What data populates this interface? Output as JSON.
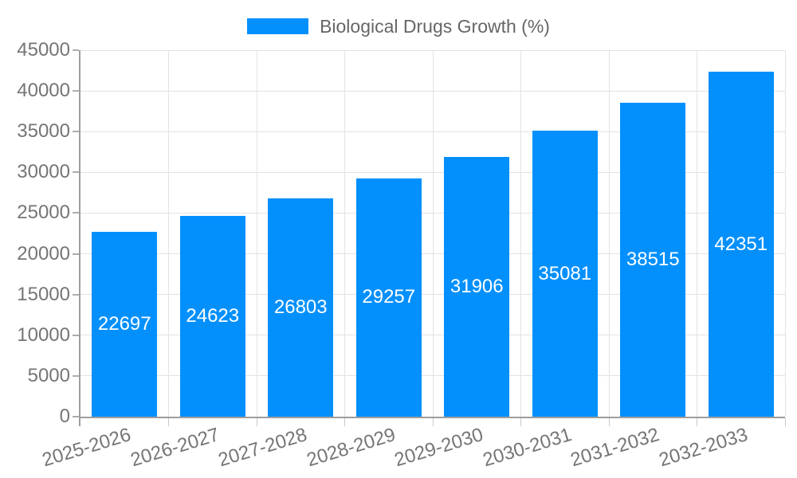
{
  "legend": {
    "label": "Biological Drugs Growth (%)"
  },
  "colors": {
    "bar": "#0390fc",
    "axis_line": "#9e9e9e",
    "gridline": "#e3e3e3",
    "tick_text": "#757575",
    "legend_text": "#666666",
    "value_label_text": "#ffffff",
    "background": "#ffffff"
  },
  "chart_data": {
    "type": "bar",
    "title": "Biological Drugs Growth (%)",
    "categories": [
      "2025-2026",
      "2026-2027",
      "2027-2028",
      "2028-2029",
      "2029-2030",
      "2030-2031",
      "2031-2032",
      "2032-2033"
    ],
    "values": [
      22697,
      24623,
      26803,
      29257,
      31906,
      35081,
      38515,
      42351
    ],
    "value_labels": [
      "22697",
      "24623",
      "26803",
      "29257",
      "31906",
      "35081",
      "38515",
      "42351"
    ],
    "xlabel": "",
    "ylabel": "",
    "ylim": [
      0,
      45000
    ],
    "ytick_step": 5000,
    "ytick_labels": [
      "0",
      "5000",
      "10000",
      "15000",
      "20000",
      "25000",
      "30000",
      "35000",
      "40000",
      "45000"
    ],
    "grid": true,
    "legend_position": "top",
    "value_label_position": "inside-center",
    "x_label_rotation_deg": -17
  }
}
